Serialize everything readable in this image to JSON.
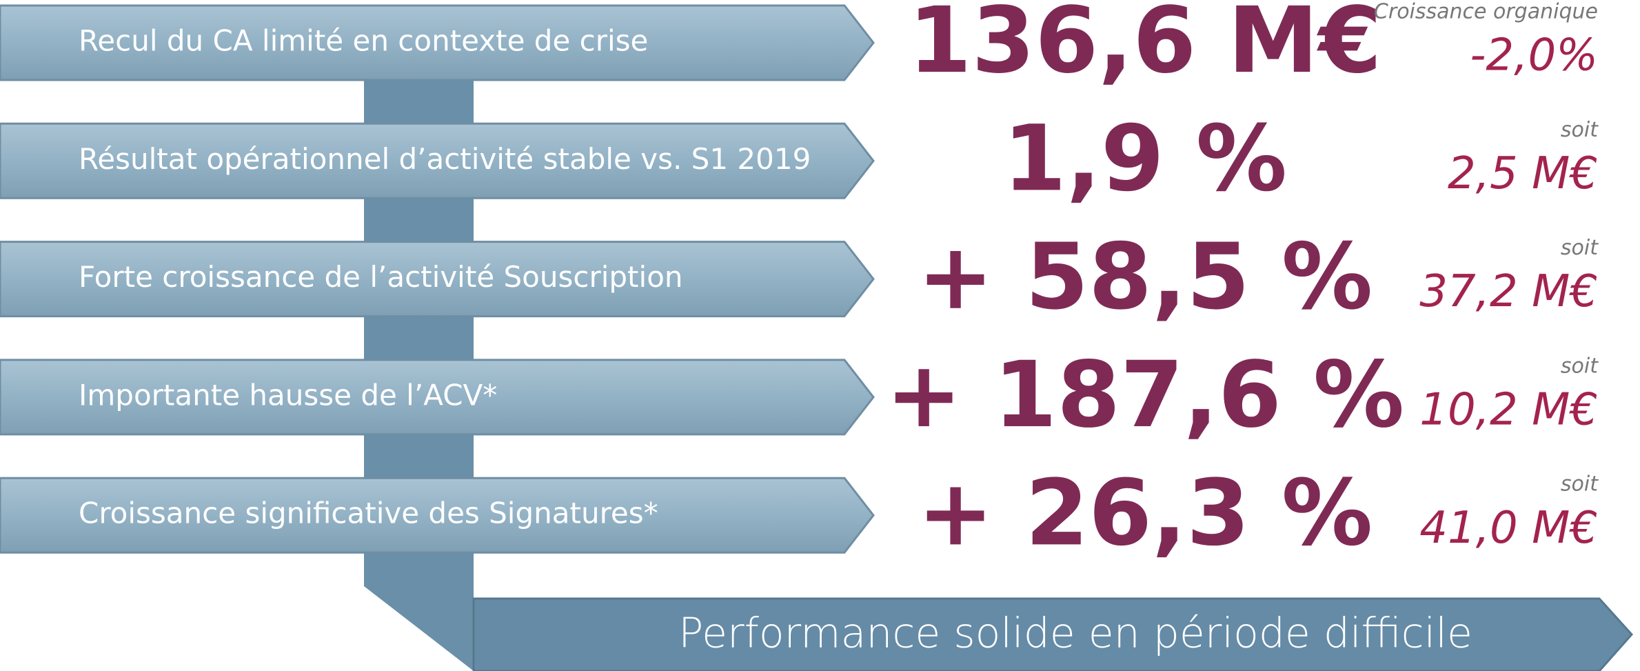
{
  "rows": [
    {
      "label": "Recul du CA limité en contexte de crise",
      "value": "136,6 M€",
      "caption": "Croissance organique",
      "amount": "-2,0%"
    },
    {
      "label": "Résultat opérationnel d’activité stable vs. S1 2019",
      "value": "1,9 %",
      "caption": "soit",
      "amount": "2,5 M€"
    },
    {
      "label": "Forte croissance de l’activité Souscription",
      "value": "+ 58,5 %",
      "caption": "soit",
      "amount": "37,2 M€"
    },
    {
      "label": "Importante hausse de l’ACV*",
      "value": "+ 187,6 %",
      "caption": "soit",
      "amount": "10,2 M€"
    },
    {
      "label": "Croissance significative des Signatures*",
      "value": "+ 26,3 %",
      "caption": "soit",
      "amount": "41,0 M€"
    }
  ],
  "footer": "Performance solide en période difficile"
}
